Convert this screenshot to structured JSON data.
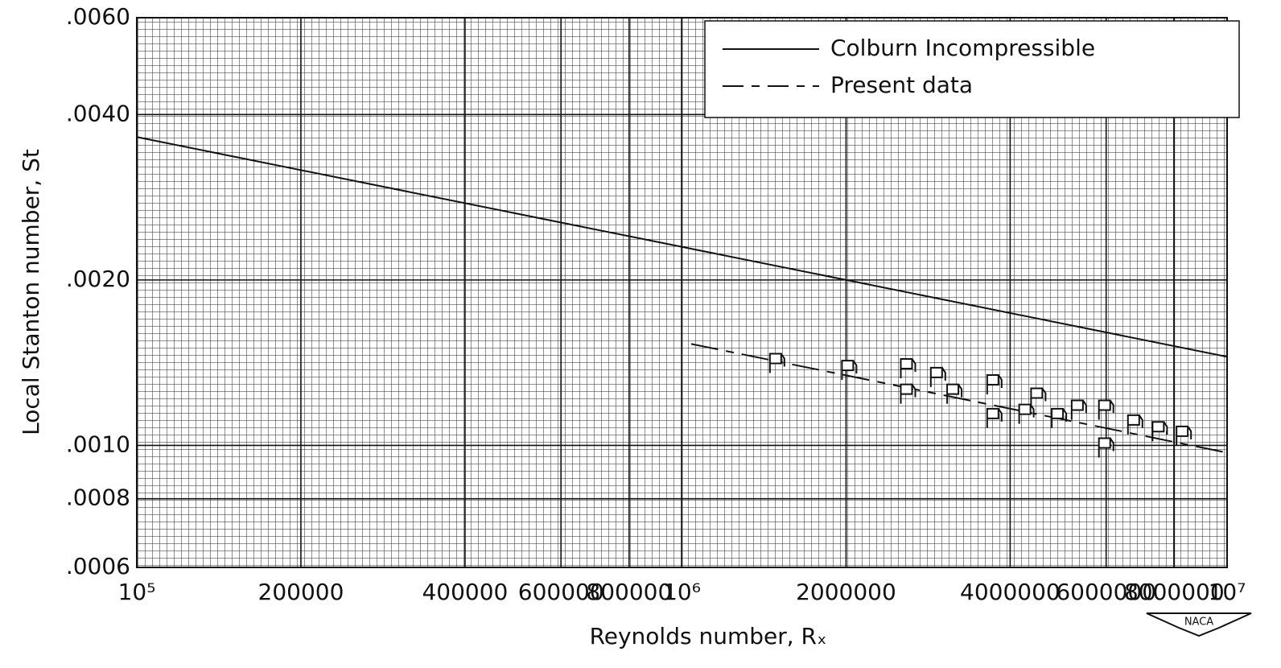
{
  "chart_data": {
    "type": "line",
    "xlabel": "Reynolds number, Rₓ",
    "ylabel": "Local Stanton number, St",
    "xscale": "log",
    "yscale": "log",
    "grid": true,
    "xlim": [
      100000,
      10000000
    ],
    "ylim": [
      0.0006,
      0.006
    ],
    "xticks": [
      {
        "value": 100000,
        "label": "10⁵"
      },
      200000,
      400000,
      600000,
      800000,
      {
        "value": 1000000,
        "label": "10⁶"
      },
      2000000,
      4000000,
      6000000,
      8000000,
      {
        "value": 10000000,
        "label": "10⁷"
      }
    ],
    "xtick_labels_minor": [
      "2",
      "4",
      "6",
      "8"
    ],
    "yticks": [
      {
        "value": 0.0006,
        "label": ".0006"
      },
      {
        "value": 0.0008,
        "label": ".0008"
      },
      {
        "value": 0.001,
        "label": ".0010"
      },
      {
        "value": 0.002,
        "label": ".0020"
      },
      {
        "value": 0.004,
        "label": ".0040"
      },
      {
        "value": 0.006,
        "label": ".0060"
      }
    ],
    "legend": "upper right",
    "series": [
      {
        "name": "Colburn   Incompressible",
        "color": "#111111",
        "style": "solid",
        "x": [
          100000,
          10000000
        ],
        "values": [
          0.00364,
          0.00145
        ]
      },
      {
        "name": "Present   data",
        "color": "#111111",
        "style": "dashed",
        "x": [
          1040000,
          10000000
        ],
        "values": [
          0.00153,
          0.00097
        ]
      }
    ],
    "points": {
      "color": "#111111",
      "x": [
        1490000,
        2020000,
        2590000,
        2590000,
        2940000,
        3150000,
        3730000,
        3730000,
        4270000,
        4490000,
        4900000,
        5330000,
        5980000,
        5980000,
        6760000,
        7500000,
        8300000
      ],
      "values": [
        0.00141,
        0.00137,
        0.00138,
        0.00124,
        0.00133,
        0.00124,
        0.00129,
        0.00112,
        0.00114,
        0.00122,
        0.00112,
        0.00116,
        0.00116,
        0.00099,
        0.00109,
        0.00106,
        0.00104
      ]
    },
    "logo": "NACA"
  }
}
